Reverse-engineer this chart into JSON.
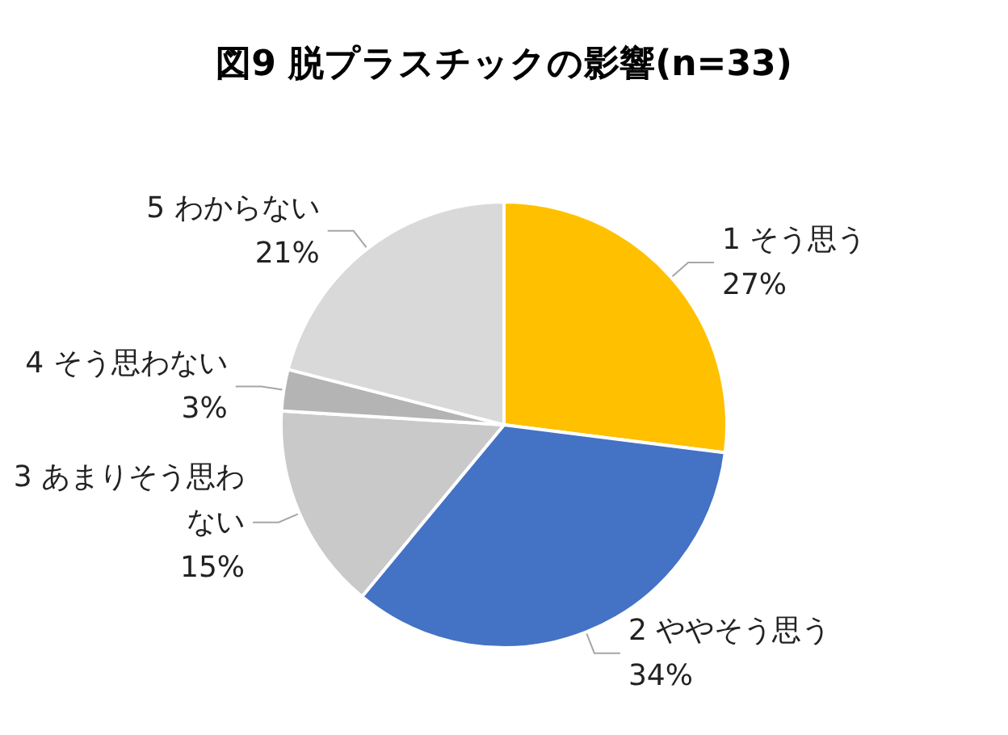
{
  "chart_data": {
    "type": "pie",
    "title": "図9 脱プラスチックの影響(n=33)",
    "categories": [
      "1 そう思う",
      "2 ややそう思う",
      "3 あまりそう思わない",
      "4 そう思わない",
      "5 わからない"
    ],
    "values": [
      27,
      34,
      15,
      3,
      21
    ],
    "value_labels": [
      "27%",
      "34%",
      "15%",
      "3%",
      "21%"
    ],
    "colors": [
      "#ffc000",
      "#4472c4",
      "#c9c9c9",
      "#b4b4b4",
      "#d9d9d9"
    ],
    "legend": false
  }
}
